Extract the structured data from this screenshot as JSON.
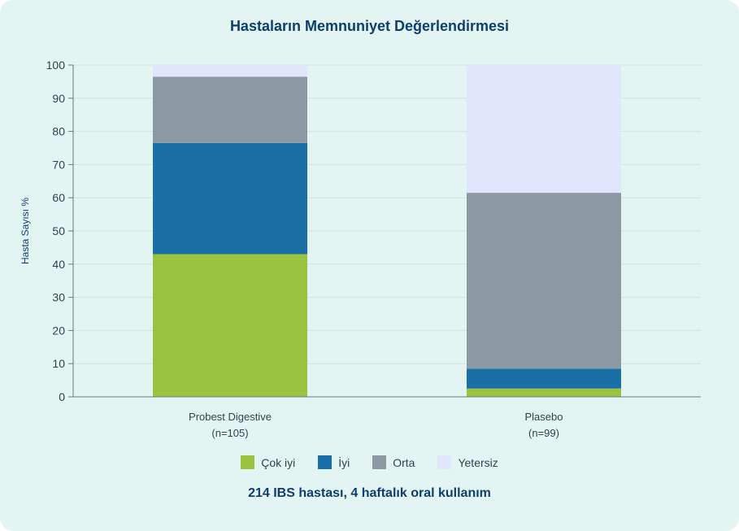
{
  "chart_data": {
    "type": "bar",
    "stacked": true,
    "title": "Hastaların Memnuniyet Değerlendirmesi",
    "subtitle": "214 IBS hastası, 4 haftalık oral kullanım",
    "ylabel": "Hasta Sayısı %",
    "xlabel": "",
    "ylim": [
      0,
      100
    ],
    "yticks": [
      "0",
      "10",
      "20",
      "30",
      "40",
      "50",
      "60",
      "70",
      "80",
      "90",
      "100"
    ],
    "categories": [
      {
        "name": "Probest Digestive",
        "n": "(n=105)"
      },
      {
        "name": "Plasebo",
        "n": "(n=99)"
      }
    ],
    "series": [
      {
        "name": "Çok iyi",
        "color": "#98c43f",
        "values": [
          43,
          2.5
        ]
      },
      {
        "name": "İyi",
        "color": "#1a6fa6",
        "values": [
          33.5,
          6
        ]
      },
      {
        "name": "Orta",
        "color": "#8c99a3",
        "values": [
          20,
          53
        ]
      },
      {
        "name": "Yetersiz",
        "color": "#e1e6fc",
        "values": [
          3.5,
          38.5
        ]
      }
    ],
    "grid": true,
    "legend_position": "bottom"
  }
}
